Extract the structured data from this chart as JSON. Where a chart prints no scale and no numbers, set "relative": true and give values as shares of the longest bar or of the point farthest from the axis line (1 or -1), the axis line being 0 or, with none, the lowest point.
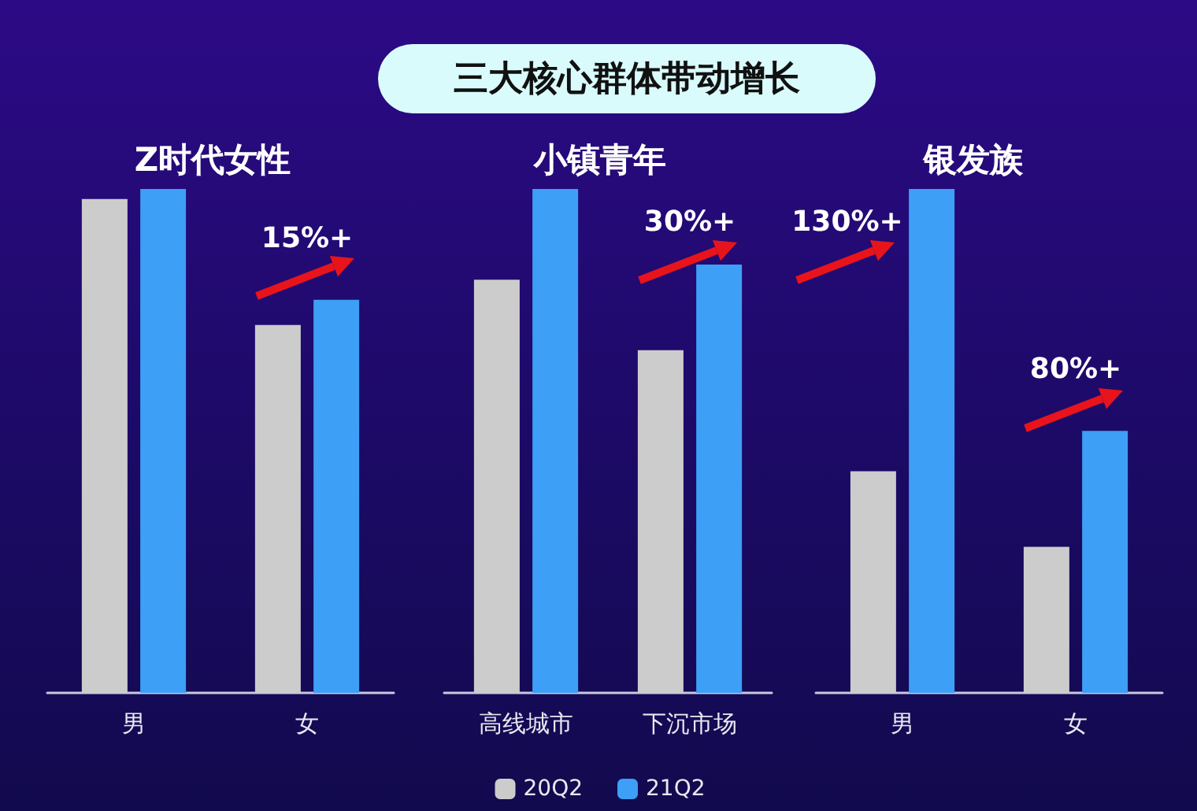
{
  "chart_data": [
    {
      "type": "bar",
      "title": "Z时代女性",
      "relative": true,
      "categories": [
        "男",
        "女"
      ],
      "series": [
        {
          "color": "#cccccc",
          "values": [
            0.98,
            0.73
          ]
        },
        {
          "color": "#3d9ff5",
          "values": [
            1.0,
            0.78
          ]
        }
      ],
      "annotations": [
        "15%+"
      ]
    },
    {
      "type": "bar",
      "title": "三大核心群体带动增长",
      "subtitle": "小镇青年",
      "relative": true,
      "categories": [
        "高线城市",
        "下沉市场"
      ],
      "legend": "bottom",
      "series": [
        {
          "name": "20Q2",
          "color": "#cccccc",
          "values": [
            0.82,
            0.68
          ]
        },
        {
          "name": "21Q2",
          "color": "#3d9ff5",
          "values": [
            1.0,
            0.85
          ]
        }
      ],
      "annotations": [
        "30%+"
      ]
    },
    {
      "type": "bar",
      "title": "银发族",
      "relative": true,
      "categories": [
        "男",
        "女"
      ],
      "series": [
        {
          "color": "#cccccc",
          "values": [
            0.44,
            0.29
          ]
        },
        {
          "color": "#3d9ff5",
          "values": [
            1.0,
            0.52
          ]
        }
      ],
      "annotations": [
        "130%+",
        "80%+"
      ]
    }
  ]
}
